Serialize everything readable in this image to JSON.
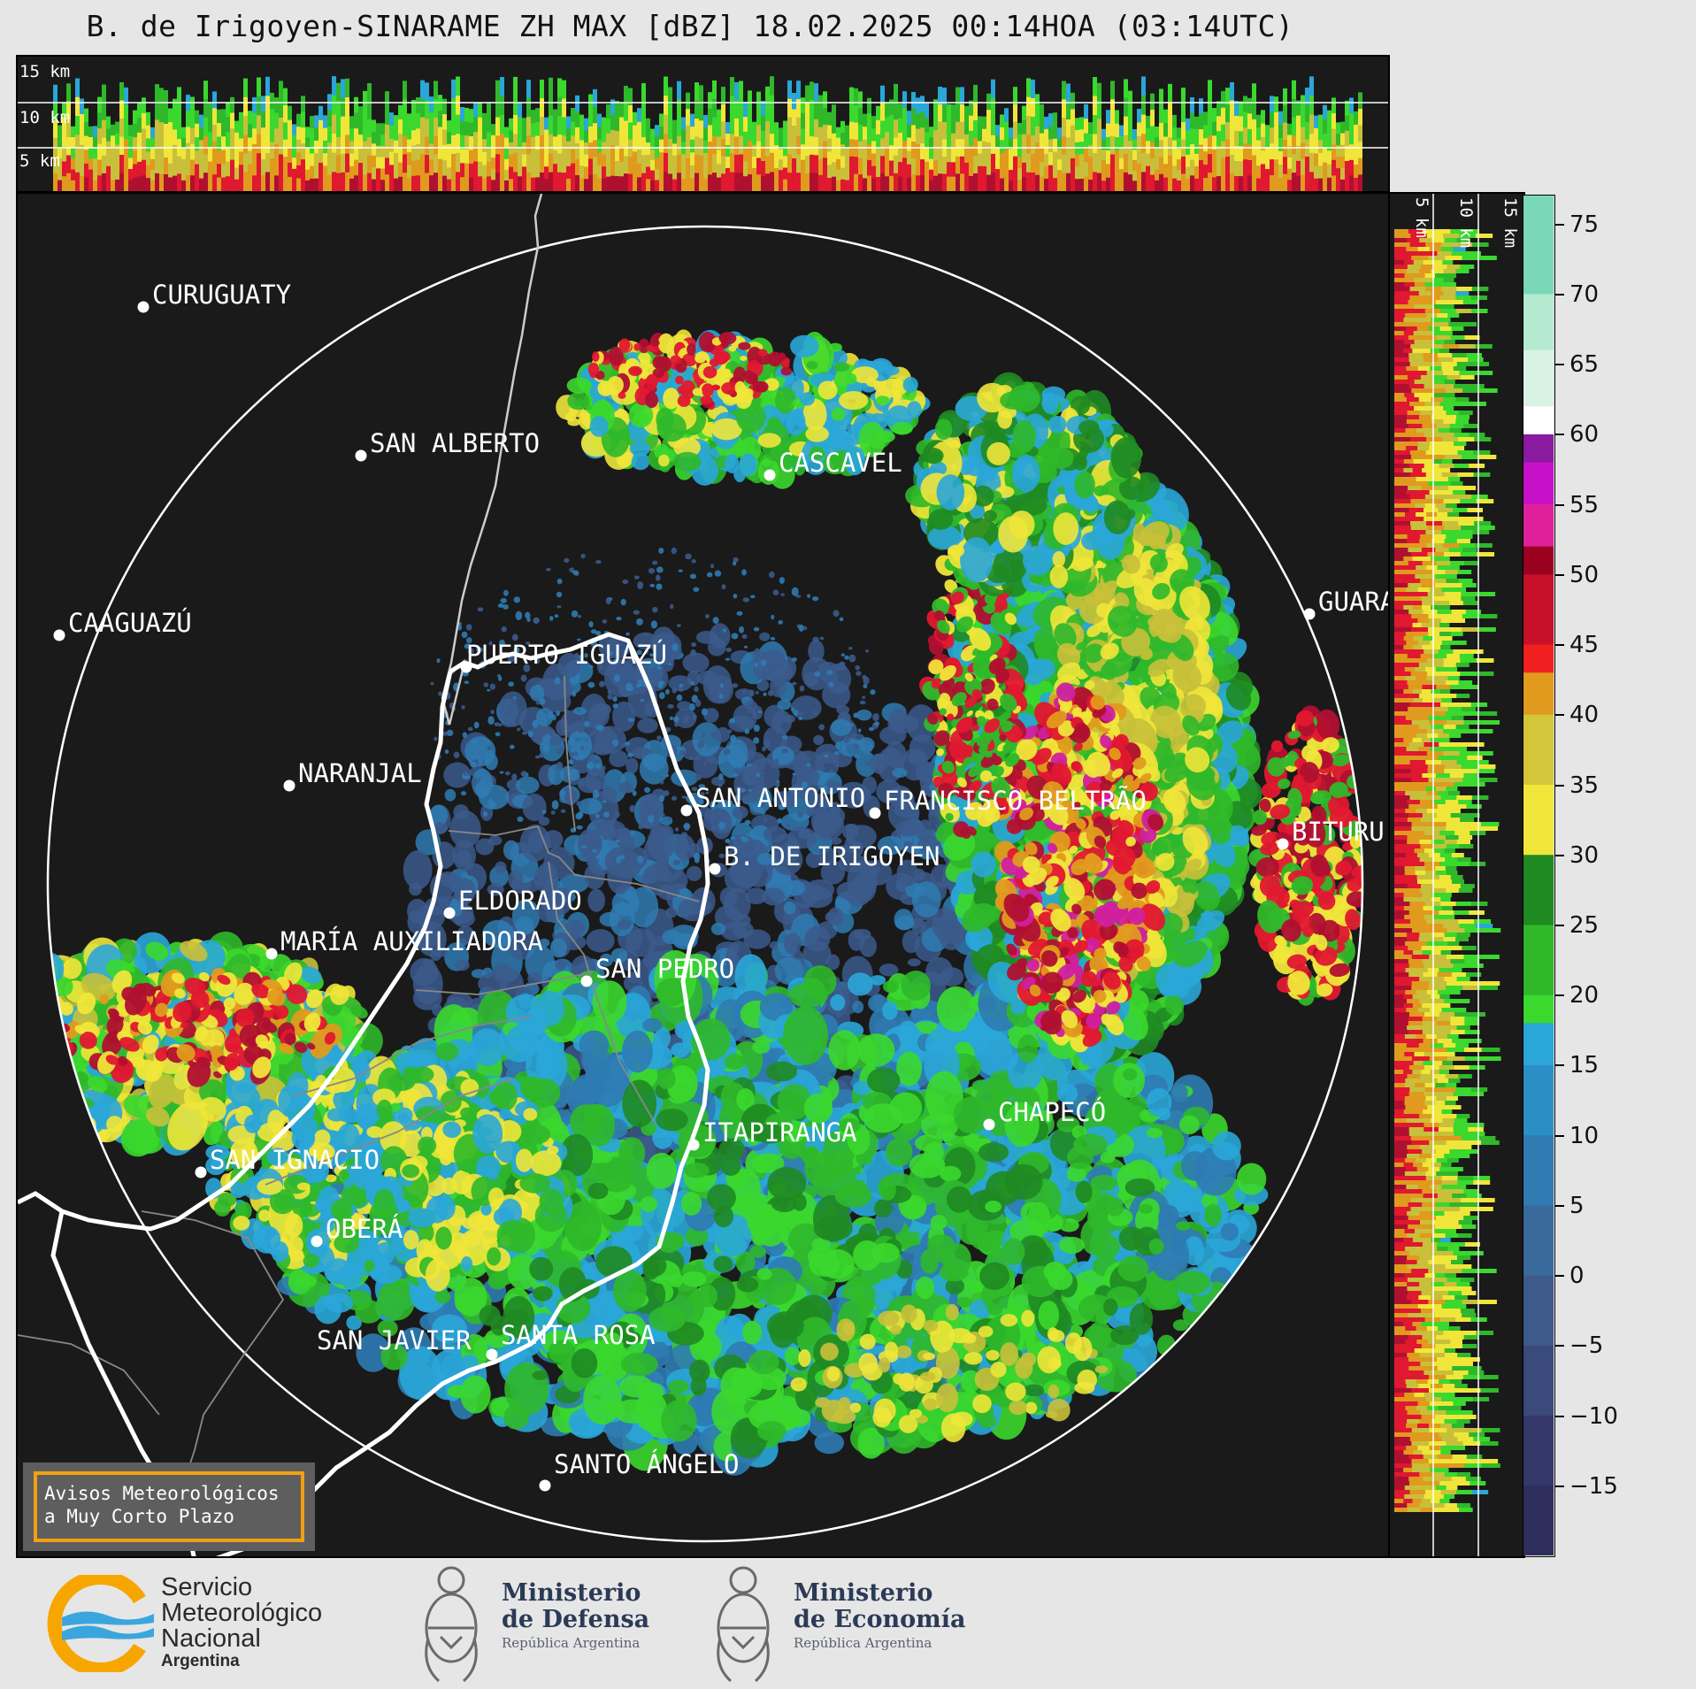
{
  "title": "B. de Irigoyen-SINARAME ZH MAX [dBZ] 18.02.2025 00:14HOA (03:14UTC)",
  "top_panel": {
    "height_labels": [
      "15 km",
      "10 km",
      "5 km"
    ]
  },
  "side_panel": {
    "height_labels": [
      "5 km",
      "10 km",
      "15 km"
    ]
  },
  "colorbar": {
    "ticks": [
      "75",
      "70",
      "65",
      "60",
      "55",
      "50",
      "45",
      "40",
      "35",
      "30",
      "25",
      "20",
      "15",
      "10",
      "5",
      "0",
      "−5",
      "−10",
      "−15"
    ],
    "range_dbz": [
      -20,
      77
    ],
    "bands": [
      {
        "from": -20,
        "to": -15,
        "color": "#2e2e5a"
      },
      {
        "from": -15,
        "to": -10,
        "color": "#34386a"
      },
      {
        "from": -10,
        "to": -5,
        "color": "#3a4a7a"
      },
      {
        "from": -5,
        "to": 0,
        "color": "#3e5a8c"
      },
      {
        "from": 0,
        "to": 5,
        "color": "#3a6a9c"
      },
      {
        "from": 5,
        "to": 10,
        "color": "#2f7bb2"
      },
      {
        "from": 10,
        "to": 15,
        "color": "#2b8fc6"
      },
      {
        "from": 15,
        "to": 18,
        "color": "#2aa6d8"
      },
      {
        "from": 18,
        "to": 20,
        "color": "#3bd82e"
      },
      {
        "from": 20,
        "to": 25,
        "color": "#2fb82a"
      },
      {
        "from": 25,
        "to": 30,
        "color": "#1f8a22"
      },
      {
        "from": 30,
        "to": 35,
        "color": "#f0e63a"
      },
      {
        "from": 35,
        "to": 40,
        "color": "#d4c63a"
      },
      {
        "from": 40,
        "to": 43,
        "color": "#e09a1e"
      },
      {
        "from": 43,
        "to": 45,
        "color": "#f02020"
      },
      {
        "from": 45,
        "to": 50,
        "color": "#c8102a"
      },
      {
        "from": 50,
        "to": 52,
        "color": "#9a0020"
      },
      {
        "from": 52,
        "to": 55,
        "color": "#e0209a"
      },
      {
        "from": 55,
        "to": 58,
        "color": "#c810c8"
      },
      {
        "from": 58,
        "to": 60,
        "color": "#8a1aa0"
      },
      {
        "from": 60,
        "to": 62,
        "color": "#ffffff"
      },
      {
        "from": 62,
        "to": 66,
        "color": "#d8f2e4"
      },
      {
        "from": 66,
        "to": 70,
        "color": "#b4ead0"
      },
      {
        "from": 70,
        "to": 77,
        "color": "#7ad8b8"
      }
    ]
  },
  "cities": [
    {
      "name": "CURUGUATY"
    },
    {
      "name": "SAN ALBERTO"
    },
    {
      "name": "CAAGUAZÚ"
    },
    {
      "name": "PUERTO IGUAZÚ"
    },
    {
      "name": "CASCAVEL"
    },
    {
      "name": "GUARA"
    },
    {
      "name": "NARANJAL"
    },
    {
      "name": "SAN ANTONIO"
    },
    {
      "name": "FRANCISCO BELTRÃO"
    },
    {
      "name": "B. DE IRIGOYEN"
    },
    {
      "name": "BITURU"
    },
    {
      "name": "ELDORADO"
    },
    {
      "name": "MARÍA AUXILIADORA"
    },
    {
      "name": "SAN PEDRO"
    },
    {
      "name": "CHAPECÓ"
    },
    {
      "name": "ITAPIRANGA"
    },
    {
      "name": "SAN IGNACIO"
    },
    {
      "name": "OBERÁ"
    },
    {
      "name": "SAN JAVIER"
    },
    {
      "name": "SANTA ROSA"
    },
    {
      "name": "SANTO ÁNGELO"
    }
  ],
  "warning_box": {
    "line1": "Avisos Meteorológicos",
    "line2": "a Muy Corto Plazo"
  },
  "logos": {
    "smn": {
      "line1": "Servicio",
      "line2": "Meteorológico",
      "line3": "Nacional",
      "line4": "Argentina"
    },
    "defensa": {
      "line1": "Ministerio",
      "line2": "de Defensa",
      "line3": "República Argentina"
    },
    "economia": {
      "line1": "Ministerio",
      "line2": "de Economía",
      "line3": "República Argentina"
    }
  }
}
